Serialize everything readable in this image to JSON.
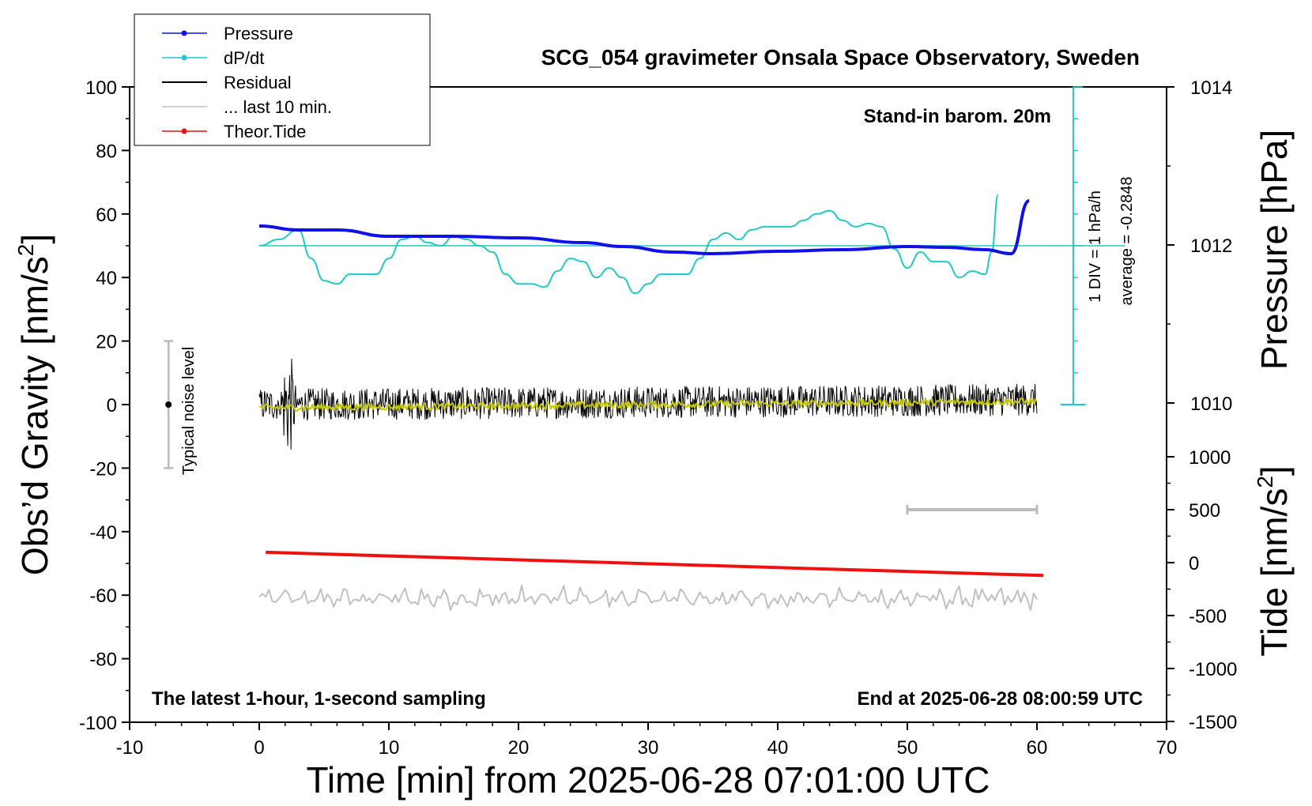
{
  "chart_data": {
    "type": "line",
    "title": "SCG_054 gravimeter Onsala Space Observatory, Sweden",
    "xlabel": "Time [min] from 2025-06-28 07:01:00 UTC",
    "ylabel_left": "Obs’d Gravity [nm/s",
    "ylabel_left_sup": "2",
    "ylabel_left_close": "]",
    "ylabel_pressure": "Pressure [hPa]",
    "ylabel_tide": "Tide [nm/s",
    "ylabel_tide_sup": "2",
    "ylabel_tide_close": "]",
    "xlim": [
      -10,
      70
    ],
    "ylim_left": [
      -100,
      100
    ],
    "x_ticks": [
      "-10",
      "0",
      "10",
      "20",
      "30",
      "40",
      "50",
      "60",
      "70"
    ],
    "y_ticks_left": [
      "100",
      "80",
      "60",
      "40",
      "20",
      "0",
      "-20",
      "-40",
      "-60",
      "-80",
      "-100"
    ],
    "pressure_ticks": [
      "1014",
      "1012",
      "1010"
    ],
    "tide_ticks": [
      "1000",
      "500",
      "0",
      "-500",
      "-1000",
      "-1500"
    ],
    "grid": false,
    "legend_position": "top-left",
    "legend": [
      {
        "name": "Pressure",
        "color": "#1010e8",
        "marker": "dot"
      },
      {
        "name": "dP/dt",
        "color": "#20c8c8",
        "marker": "dot"
      },
      {
        "name": "Residual",
        "color": "#000000",
        "marker": "none"
      },
      {
        "name": "... last 10 min.",
        "color": "#c0c0c0",
        "marker": "none"
      },
      {
        "name": "Theor.Tide",
        "color": "#f01010",
        "marker": "dot"
      }
    ],
    "annotations": {
      "barom": "Stand-in barom. 20m",
      "div": "1 DIV = 1 hPa/h",
      "average": "average = -0.2848",
      "noise": "Typical noise level",
      "bottom_left": "The latest 1-hour, 1-second sampling",
      "bottom_right": "End at 2025-06-28 08:00:59 UTC"
    },
    "series": [
      {
        "name": "Pressure",
        "axis": "pressure_hPa",
        "color": "#1010e8",
        "x": [
          0,
          3,
          6,
          10,
          15,
          20,
          25,
          28,
          32,
          35,
          40,
          45,
          50,
          53,
          56,
          58,
          59.4
        ],
        "y": [
          1012.24,
          1012.19,
          1012.19,
          1012.11,
          1012.11,
          1012.09,
          1012.03,
          1011.98,
          1011.91,
          1011.89,
          1011.92,
          1011.94,
          1011.98,
          1011.97,
          1011.94,
          1011.89,
          1012.56
        ]
      },
      {
        "name": "dP/dt",
        "axis": "div_left",
        "color": "#20c8c8",
        "x": [
          0,
          1.5,
          3,
          4,
          5,
          6,
          7,
          8,
          9,
          10,
          11,
          12,
          13,
          14,
          15,
          16,
          17,
          18,
          19,
          20,
          21,
          22,
          23,
          24,
          25,
          26,
          27,
          28,
          29,
          30,
          31,
          32,
          33,
          34,
          35,
          36,
          37,
          38,
          39,
          40,
          41,
          42,
          43,
          44,
          45,
          46,
          47,
          48,
          49,
          50,
          51,
          52,
          53,
          54,
          55,
          56,
          56.5,
          57
        ],
        "y": [
          50,
          52,
          55,
          46,
          39,
          38,
          41,
          41,
          41,
          46,
          52,
          53,
          51,
          50,
          53,
          52,
          50,
          48,
          41,
          38,
          38,
          37,
          42,
          46,
          45,
          40,
          43,
          40,
          35,
          38,
          41,
          41,
          41,
          46,
          52,
          54,
          52,
          55,
          56,
          56,
          56,
          58,
          60,
          61,
          58,
          56,
          57,
          56,
          49,
          43,
          48,
          45,
          45,
          40,
          42,
          41,
          48,
          66
        ]
      },
      {
        "name": "Residual",
        "axis": "gravity",
        "color": "#000000",
        "x_range": [
          0,
          60
        ],
        "amplitude_nm_s2": 5,
        "burst_x": [
          1.5,
          3
        ],
        "burst_min": -23,
        "burst_max": 15
      },
      {
        "name": "10-min average",
        "axis": "gravity",
        "color": "#c8c800",
        "x": [
          0,
          60
        ],
        "y": [
          -1,
          1
        ]
      },
      {
        "name": "Theor.Tide",
        "axis": "gravity",
        "color": "#f01010",
        "x": [
          0.5,
          60.5
        ],
        "y": [
          -46.5,
          -53.8
        ]
      },
      {
        "name": "... last 10 min.",
        "axis": "gravity",
        "color": "#c0c0c0",
        "x_range": [
          0,
          60
        ],
        "center": -61,
        "amplitude": 3
      }
    ],
    "noise_bar": {
      "x": -7,
      "center": 0,
      "low": -20,
      "high": 20
    },
    "timespan_bar": {
      "x": [
        50,
        60
      ],
      "y_tide": 500
    }
  }
}
